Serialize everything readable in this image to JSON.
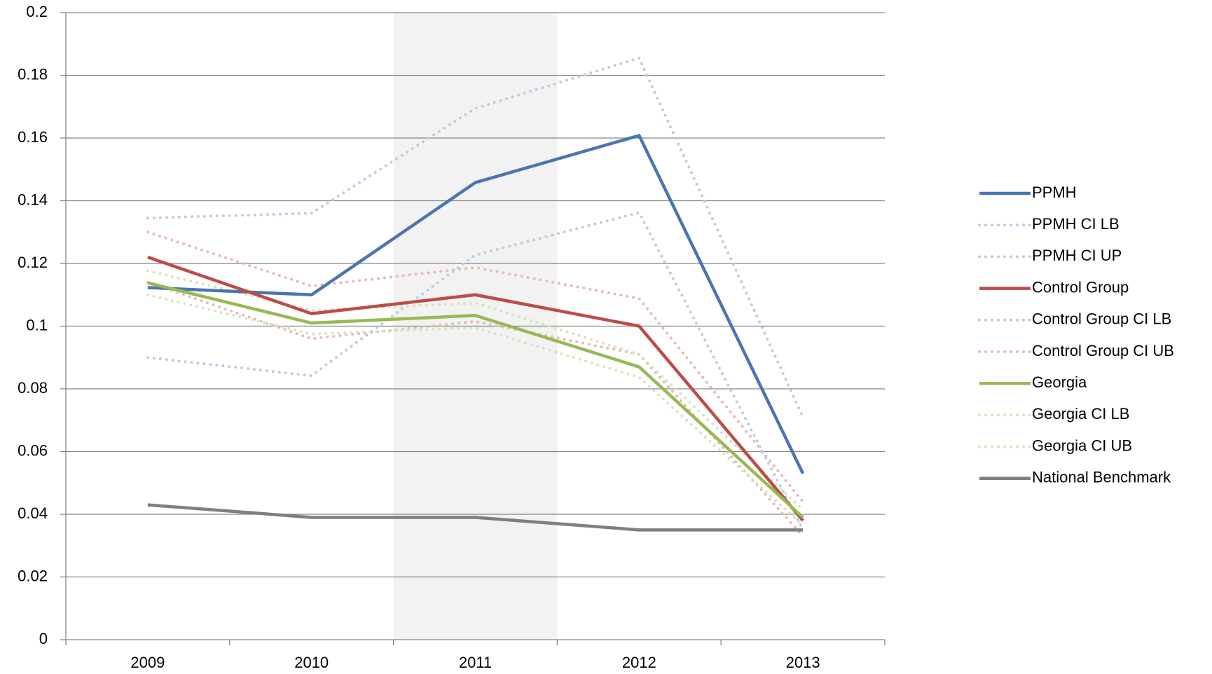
{
  "chart_data": {
    "type": "line",
    "categories": [
      "2009",
      "2010",
      "2011",
      "2012",
      "2013"
    ],
    "highlight_index": 2,
    "series": [
      {
        "name": "PPMH",
        "color": "#4a76b0",
        "style": "solid",
        "values": [
          0.1123,
          0.11,
          0.1458,
          0.1608,
          0.053
        ]
      },
      {
        "name": "PPMH CI LB",
        "color": "#b9cde5",
        "style": "dotted",
        "values": [
          0.09,
          0.0842,
          0.1227,
          0.1362,
          0.035
        ]
      },
      {
        "name": "PPMH CI UP",
        "color": "#b9cde5",
        "style": "dotted",
        "values": [
          0.1345,
          0.136,
          0.1695,
          0.1855,
          0.071
        ]
      },
      {
        "name": "Control Group",
        "color": "#be4b48",
        "style": "solid",
        "values": [
          0.122,
          0.104,
          0.11,
          0.1,
          0.038
        ]
      },
      {
        "name": "Control Group CI LB",
        "color": "#e6b9b8",
        "style": "dotted",
        "values": [
          0.114,
          0.096,
          0.1015,
          0.091,
          0.033
        ]
      },
      {
        "name": "Control Group CI UB",
        "color": "#e6b9b8",
        "style": "dotted",
        "values": [
          0.13,
          0.1128,
          0.1187,
          0.1088,
          0.044
        ]
      },
      {
        "name": "Georgia",
        "color": "#98b954",
        "style": "solid",
        "values": [
          0.1138,
          0.101,
          0.1034,
          0.087,
          0.039
        ]
      },
      {
        "name": "Georgia CI LB",
        "color": "#d7e4bd",
        "style": "dotted",
        "values": [
          0.11,
          0.0975,
          0.0995,
          0.0837,
          0.0365
        ]
      },
      {
        "name": "Georgia CI UB",
        "color": "#d7e4bd",
        "style": "dotted",
        "values": [
          0.1177,
          0.105,
          0.1074,
          0.091,
          0.0414
        ]
      },
      {
        "name": "National Benchmark",
        "color": "#7f7f7f",
        "style": "solid",
        "values": [
          0.043,
          0.039,
          0.039,
          0.035,
          0.035
        ]
      }
    ],
    "ylim": [
      0,
      0.2
    ],
    "yticks": [
      0,
      0.02,
      0.04,
      0.06,
      0.08,
      0.1,
      0.12,
      0.14,
      0.16,
      0.18,
      0.2
    ],
    "grid": true,
    "legend": "right"
  }
}
